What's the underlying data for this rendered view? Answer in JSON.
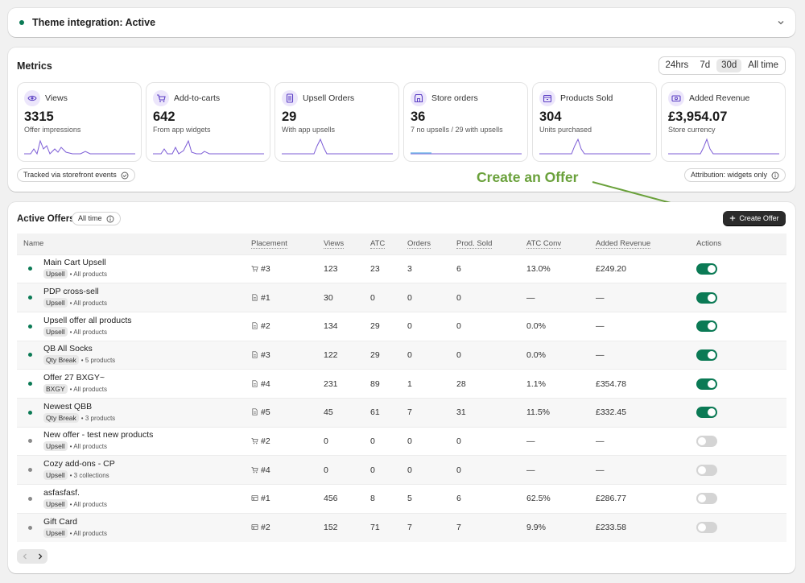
{
  "theme": {
    "title": "Theme integration: Active"
  },
  "metrics": {
    "title": "Metrics",
    "ranges": [
      "24hrs",
      "7d",
      "30d",
      "All time"
    ],
    "selected_range": "30d",
    "cards": [
      {
        "label": "Views",
        "value": "3315",
        "sub": "Offer impressions",
        "icon": "eye-icon"
      },
      {
        "label": "Add-to-carts",
        "value": "642",
        "sub": "From app widgets",
        "icon": "cart-icon"
      },
      {
        "label": "Upsell Orders",
        "value": "29",
        "sub": "With app upsells",
        "icon": "receipt-icon"
      },
      {
        "label": "Store orders",
        "value": "36",
        "sub": "7 no upsells / 29 with upsells",
        "icon": "store-icon"
      },
      {
        "label": "Products Sold",
        "value": "304",
        "sub": "Units purchased",
        "icon": "package-icon"
      },
      {
        "label": "Added Revenue",
        "value": "£3,954.07",
        "sub": "Store currency",
        "icon": "money-icon"
      }
    ],
    "tracked_label": "Tracked via storefront events",
    "attribution_label": "Attribution: widgets only"
  },
  "annotation": {
    "text": "Create an Offer"
  },
  "offers": {
    "title": "Active Offers",
    "range_label": "All time",
    "create_label": "Create Offer",
    "columns": [
      "Name",
      "Placement",
      "Views",
      "ATC",
      "Orders",
      "Prod. Sold",
      "ATC Conv",
      "Added Revenue",
      "Actions"
    ],
    "rows": [
      {
        "name": "Main Cart Upsell",
        "tag": "Upsell",
        "scope": "All products",
        "placement": "#3",
        "placement_icon": "cart",
        "views": "123",
        "atc": "23",
        "orders": "3",
        "sold": "6",
        "conv": "13.0%",
        "revenue": "£249.20",
        "active": true
      },
      {
        "name": "PDP cross-sell",
        "tag": "Upsell",
        "scope": "All products",
        "placement": "#1",
        "placement_icon": "page",
        "views": "30",
        "atc": "0",
        "orders": "0",
        "sold": "0",
        "conv": "—",
        "revenue": "—",
        "active": true
      },
      {
        "name": "Upsell offer all products",
        "tag": "Upsell",
        "scope": "All products",
        "placement": "#2",
        "placement_icon": "page",
        "views": "134",
        "atc": "29",
        "orders": "0",
        "sold": "0",
        "conv": "0.0%",
        "revenue": "—",
        "active": true
      },
      {
        "name": "QB All Socks",
        "tag": "Qty Break",
        "scope": "5 products",
        "placement": "#3",
        "placement_icon": "page",
        "views": "122",
        "atc": "29",
        "orders": "0",
        "sold": "0",
        "conv": "0.0%",
        "revenue": "—",
        "active": true
      },
      {
        "name": "Offer 27 BXGY~",
        "tag": "BXGY",
        "scope": "All products",
        "placement": "#4",
        "placement_icon": "page",
        "views": "231",
        "atc": "89",
        "orders": "1",
        "sold": "28",
        "conv": "1.1%",
        "revenue": "£354.78",
        "active": true
      },
      {
        "name": "Newest QBB",
        "tag": "Qty Break",
        "scope": "3 products",
        "placement": "#5",
        "placement_icon": "page",
        "views": "45",
        "atc": "61",
        "orders": "7",
        "sold": "31",
        "conv": "11.5%",
        "revenue": "£332.45",
        "active": true
      },
      {
        "name": "New offer - test new products",
        "tag": "Upsell",
        "scope": "All products",
        "placement": "#2",
        "placement_icon": "cart",
        "views": "0",
        "atc": "0",
        "orders": "0",
        "sold": "0",
        "conv": "—",
        "revenue": "—",
        "active": false
      },
      {
        "name": "Cozy add-ons - CP",
        "tag": "Upsell",
        "scope": "3 collections",
        "placement": "#4",
        "placement_icon": "cart",
        "views": "0",
        "atc": "0",
        "orders": "0",
        "sold": "0",
        "conv": "—",
        "revenue": "—",
        "active": false
      },
      {
        "name": "asfasfasf.",
        "tag": "Upsell",
        "scope": "All products",
        "placement": "#1",
        "placement_icon": "store",
        "views": "456",
        "atc": "8",
        "orders": "5",
        "sold": "6",
        "conv": "62.5%",
        "revenue": "£286.77",
        "active": false
      },
      {
        "name": "Gift Card",
        "tag": "Upsell",
        "scope": "All products",
        "placement": "#2",
        "placement_icon": "store",
        "views": "152",
        "atc": "71",
        "orders": "7",
        "sold": "7",
        "conv": "9.9%",
        "revenue": "£233.58",
        "active": false
      }
    ]
  },
  "colors": {
    "active": "#0b7a55",
    "inactive": "#8a8a8a",
    "accent": "#7c5cd6",
    "annotation": "#6aa13b"
  }
}
